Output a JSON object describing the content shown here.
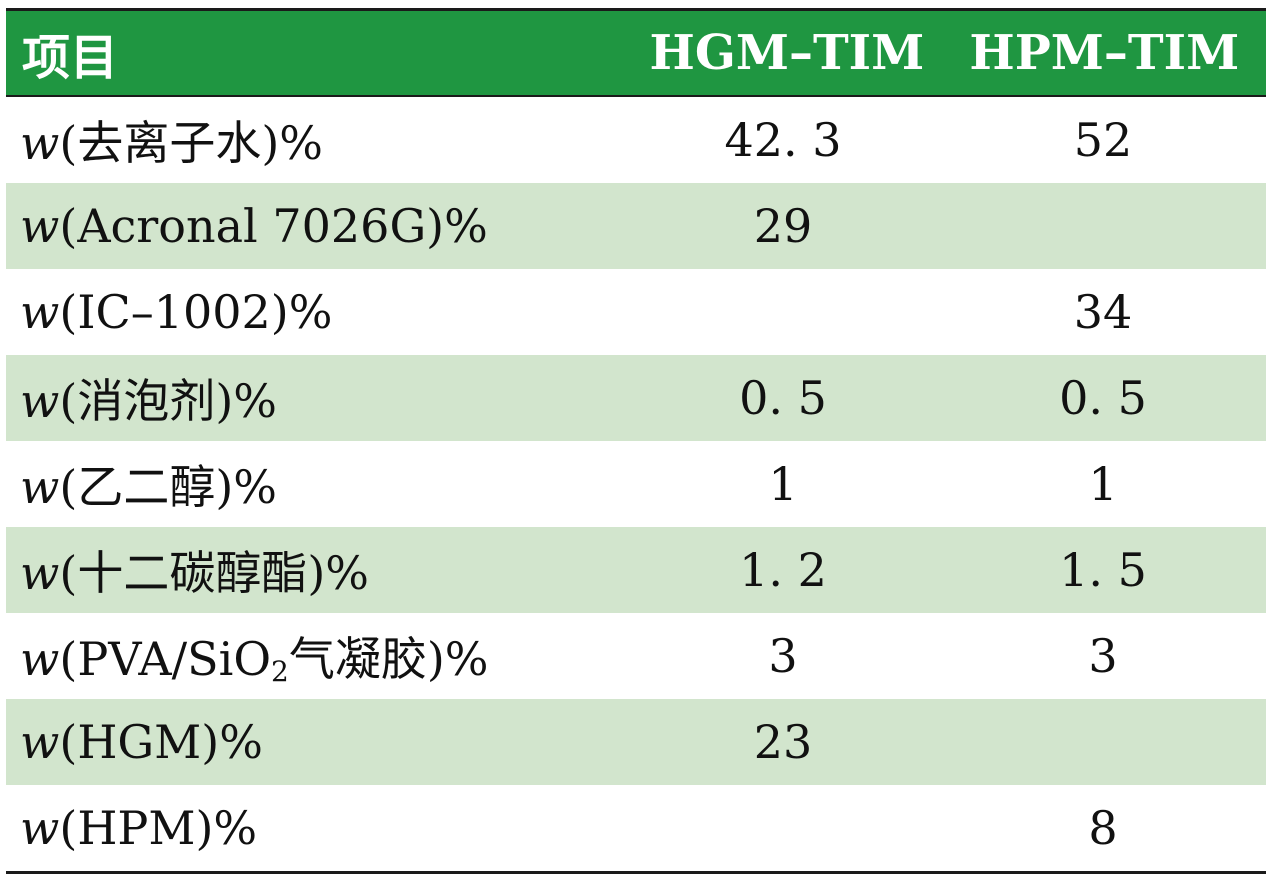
{
  "table": {
    "headers": {
      "item": "项目",
      "col_a": "HGM–TIM",
      "col_b": "HPM–TIM"
    },
    "rows": [
      {
        "var": "w",
        "name": "(去离子水)%",
        "a": "42. 3",
        "b": "52"
      },
      {
        "var": "w",
        "name": "(Acronal 7026G)%",
        "a": "29",
        "b": ""
      },
      {
        "var": "w",
        "name": "(IC–1002)%",
        "a": "",
        "b": "34"
      },
      {
        "var": "w",
        "name": "(消泡剂)%",
        "a": "0. 5",
        "b": "0. 5"
      },
      {
        "var": "w",
        "name": "(乙二醇)%",
        "a": "1",
        "b": "1"
      },
      {
        "var": "w",
        "name": "(十二碳醇酯)%",
        "a": "1. 2",
        "b": "1. 5"
      },
      {
        "var": "w",
        "name_pre": "(PVA/SiO",
        "name_sub": "2",
        "name_post": "气凝胶)%",
        "a": "3",
        "b": "3"
      },
      {
        "var": "w",
        "name": "(HGM)%",
        "a": "23",
        "b": ""
      },
      {
        "var": "w",
        "name": "(HPM)%",
        "a": "",
        "b": "8"
      }
    ]
  },
  "colors": {
    "header_bg": "#1f9641",
    "shaded_row_bg": "#d2e5cd",
    "rule": "#1a1a1a"
  }
}
